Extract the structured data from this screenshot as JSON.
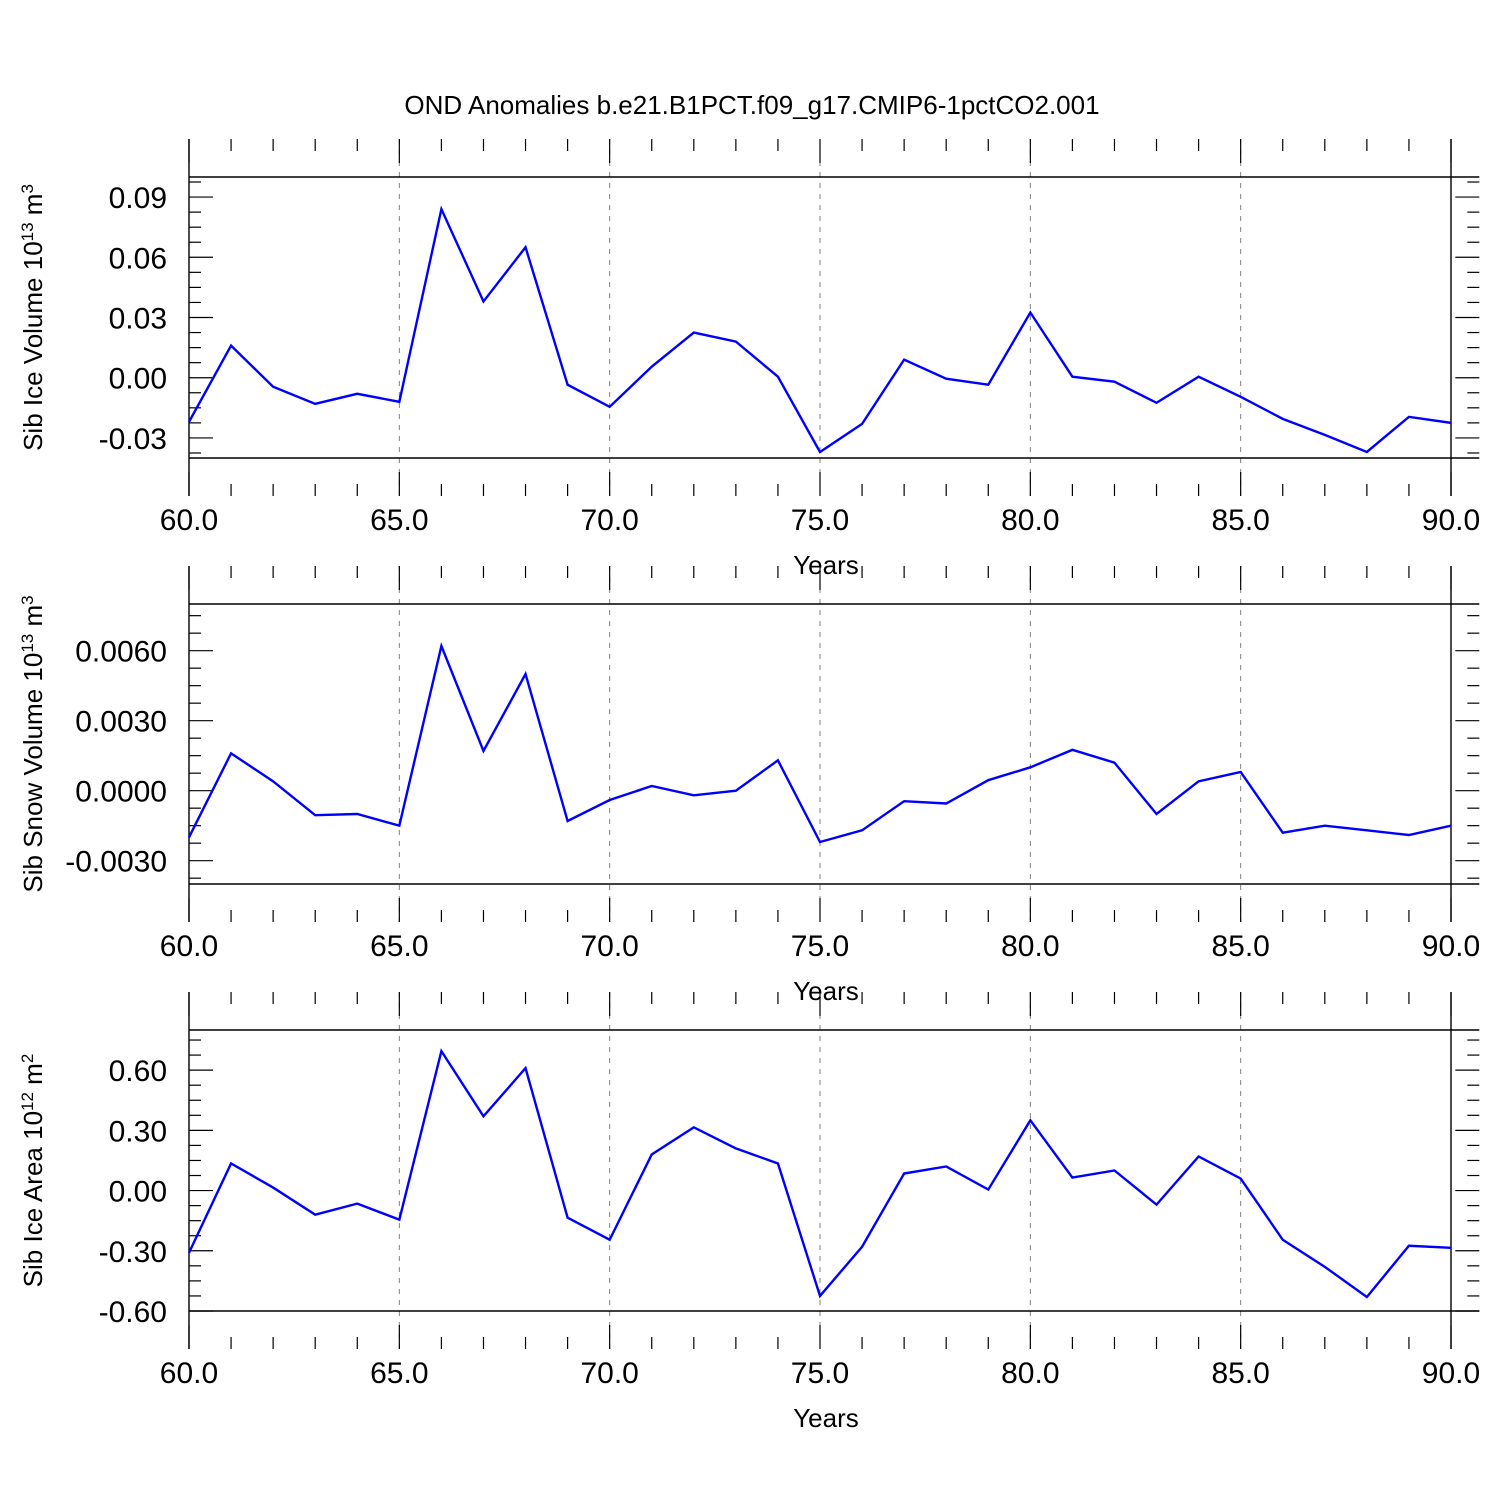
{
  "figure_title": "OND Anomalies b.e21.B1PCT.f09_g17.CMIP6-1pctCO2.001",
  "colors": {
    "line": "#0000ff",
    "axis": "#000000",
    "grid": "#808080"
  },
  "chart_data": [
    {
      "type": "line",
      "xlabel": "Years",
      "ylabel": {
        "base": "Sib Ice Volume 10",
        "exp": "13",
        "unit": " m",
        "unit_exp": "3"
      },
      "xlim": [
        60,
        90
      ],
      "ylim": [
        -0.04,
        0.1
      ],
      "xticks": [
        60,
        65,
        70,
        75,
        80,
        85,
        90
      ],
      "xtick_labels": [
        "60.0",
        "65.0",
        "70.0",
        "75.0",
        "80.0",
        "85.0",
        "90.0"
      ],
      "yticks": [
        -0.03,
        0.0,
        0.03,
        0.06,
        0.09
      ],
      "ytick_labels": [
        "-0.03",
        "0.00",
        "0.03",
        "0.06",
        "0.09"
      ],
      "grid": "vertical dashed at major x ticks",
      "x": [
        60,
        61,
        62,
        63,
        64,
        65,
        66,
        67,
        68,
        69,
        70,
        71,
        72,
        73,
        74,
        75,
        76,
        77,
        78,
        79,
        80,
        81,
        82,
        83,
        84,
        85,
        86,
        87,
        88,
        89,
        90
      ],
      "values": [
        -0.022,
        0.016,
        -0.0045,
        -0.013,
        -0.008,
        -0.012,
        0.084,
        0.038,
        0.065,
        -0.0035,
        -0.0145,
        0.0055,
        0.0225,
        0.018,
        0.0005,
        -0.037,
        -0.023,
        0.009,
        -0.0005,
        -0.0035,
        0.0325,
        0.0005,
        -0.002,
        -0.0125,
        0.0005,
        -0.0095,
        -0.0205,
        -0.0285,
        -0.037,
        -0.0195,
        -0.0225
      ]
    },
    {
      "type": "line",
      "xlabel": "Years",
      "ylabel": {
        "base": "Sib Snow Volume 10",
        "exp": "13",
        "unit": " m",
        "unit_exp": "3"
      },
      "xlim": [
        60,
        90
      ],
      "ylim": [
        -0.004,
        0.008
      ],
      "xticks": [
        60,
        65,
        70,
        75,
        80,
        85,
        90
      ],
      "xtick_labels": [
        "60.0",
        "65.0",
        "70.0",
        "75.0",
        "80.0",
        "85.0",
        "90.0"
      ],
      "yticks": [
        -0.003,
        0.0,
        0.003,
        0.006
      ],
      "ytick_labels": [
        "-0.0030",
        "0.0000",
        "0.0030",
        "0.0060"
      ],
      "grid": "vertical dashed at major x ticks",
      "x": [
        60,
        61,
        62,
        63,
        64,
        65,
        66,
        67,
        68,
        69,
        70,
        71,
        72,
        73,
        74,
        75,
        76,
        77,
        78,
        79,
        80,
        81,
        82,
        83,
        84,
        85,
        86,
        87,
        88,
        89,
        90
      ],
      "values": [
        -0.002,
        0.0016,
        0.0004,
        -0.00105,
        -0.001,
        -0.0015,
        0.0062,
        0.0017,
        0.005,
        -0.0013,
        -0.0004,
        0.0002,
        -0.0002,
        0.0,
        0.0013,
        -0.0022,
        -0.0017,
        -0.00045,
        -0.00055,
        0.00045,
        0.001,
        0.00175,
        0.0012,
        -0.001,
        0.0004,
        0.0008,
        -0.0018,
        -0.0015,
        -0.0017,
        -0.0019,
        -0.0015
      ]
    },
    {
      "type": "line",
      "xlabel": "Years",
      "ylabel": {
        "base": "Sib Ice Area 10",
        "exp": "12",
        "unit": " m",
        "unit_exp": "2"
      },
      "xlim": [
        60,
        90
      ],
      "ylim": [
        -0.6,
        0.8
      ],
      "xticks": [
        60,
        65,
        70,
        75,
        80,
        85,
        90
      ],
      "xtick_labels": [
        "60.0",
        "65.0",
        "70.0",
        "75.0",
        "80.0",
        "85.0",
        "90.0"
      ],
      "yticks": [
        -0.6,
        -0.3,
        0.0,
        0.3,
        0.6
      ],
      "ytick_labels": [
        "-0.60",
        "-0.30",
        "0.00",
        "0.30",
        "0.60"
      ],
      "grid": "vertical dashed at major x ticks",
      "x": [
        60,
        61,
        62,
        63,
        64,
        65,
        66,
        67,
        68,
        69,
        70,
        71,
        72,
        73,
        74,
        75,
        76,
        77,
        78,
        79,
        80,
        81,
        82,
        83,
        84,
        85,
        86,
        87,
        88,
        89,
        90
      ],
      "values": [
        -0.31,
        0.135,
        0.015,
        -0.12,
        -0.065,
        -0.145,
        0.695,
        0.37,
        0.61,
        -0.135,
        -0.245,
        0.18,
        0.315,
        0.21,
        0.135,
        -0.525,
        -0.28,
        0.085,
        0.12,
        0.005,
        0.35,
        0.065,
        0.1,
        -0.07,
        0.17,
        0.06,
        -0.245,
        -0.38,
        -0.53,
        -0.275,
        -0.285
      ]
    }
  ]
}
